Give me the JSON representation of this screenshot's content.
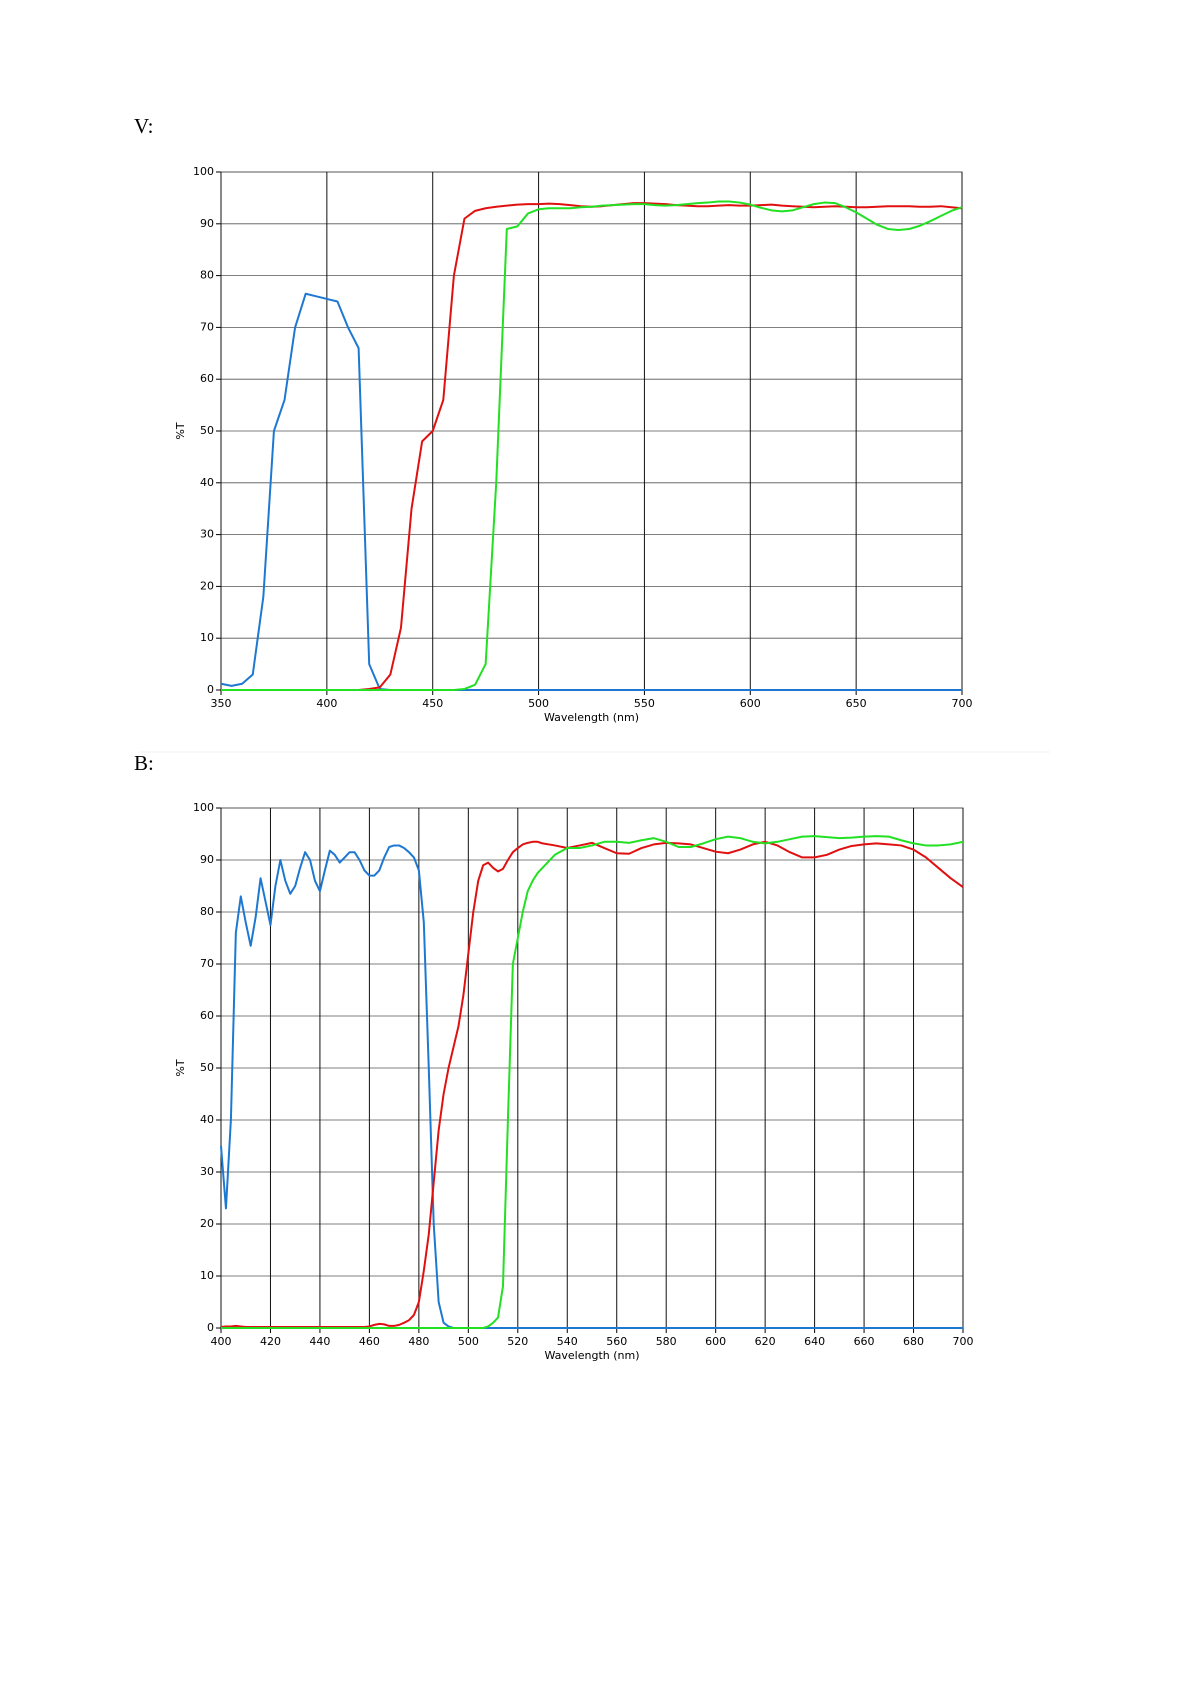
{
  "chart_data": [
    {
      "type": "line",
      "title": "V:",
      "xlabel": "Wavelength (nm)",
      "ylabel": "%T",
      "xlim": [
        350,
        700
      ],
      "xticks": [
        350,
        400,
        450,
        500,
        550,
        600,
        650,
        700
      ],
      "ylim": [
        0,
        100
      ],
      "yticks": [
        0,
        10,
        20,
        30,
        40,
        50,
        60,
        70,
        80,
        90,
        100
      ],
      "grid": true,
      "x": [
        350,
        355,
        360,
        365,
        370,
        375,
        380,
        385,
        390,
        395,
        400,
        405,
        410,
        415,
        420,
        425,
        430,
        435,
        440,
        445,
        450,
        455,
        460,
        465,
        470,
        475,
        480,
        485,
        490,
        495,
        500,
        505,
        510,
        515,
        520,
        525,
        530,
        535,
        540,
        545,
        550,
        555,
        560,
        565,
        570,
        575,
        580,
        585,
        590,
        595,
        600,
        605,
        610,
        615,
        620,
        625,
        630,
        635,
        640,
        645,
        650,
        655,
        660,
        665,
        670,
        675,
        680,
        685,
        690,
        695,
        700
      ],
      "series": [
        {
          "color": "#1e78d2",
          "values": [
            1.2,
            0.8,
            1.2,
            3,
            18,
            50,
            56,
            70,
            76.5,
            76,
            75.5,
            75,
            70,
            66,
            5,
            0.2,
            0,
            0,
            0,
            0,
            0,
            0,
            0,
            0,
            0,
            0,
            0,
            0,
            0,
            0,
            0,
            0,
            0,
            0,
            0,
            0,
            0,
            0,
            0,
            0,
            0,
            0,
            0,
            0,
            0,
            0,
            0,
            0,
            0,
            0,
            0,
            0,
            0,
            0,
            0,
            0,
            0,
            0,
            0,
            0,
            0,
            0,
            0,
            0,
            0,
            0,
            0,
            0,
            0,
            0,
            0
          ]
        },
        {
          "color": "#e01010",
          "values": [
            0,
            0,
            0,
            0,
            0,
            0,
            0,
            0,
            0,
            0,
            0,
            0,
            0,
            0,
            0.2,
            0.5,
            3,
            12,
            35,
            48,
            50,
            56,
            80,
            91,
            92.5,
            93,
            93.3,
            93.5,
            93.7,
            93.8,
            93.8,
            93.9,
            93.8,
            93.6,
            93.4,
            93.3,
            93.4,
            93.6,
            93.8,
            94,
            94,
            93.9,
            93.8,
            93.6,
            93.5,
            93.4,
            93.4,
            93.5,
            93.6,
            93.5,
            93.5,
            93.6,
            93.7,
            93.5,
            93.4,
            93.3,
            93.2,
            93.3,
            93.4,
            93.3,
            93.2,
            93.2,
            93.3,
            93.4,
            93.4,
            93.4,
            93.3,
            93.3,
            93.4,
            93.2,
            93
          ]
        },
        {
          "color": "#22e022",
          "values": [
            0,
            0,
            0,
            0,
            0,
            0,
            0,
            0,
            0,
            0,
            0,
            0,
            0,
            0,
            0,
            0,
            0,
            0,
            0,
            0,
            0,
            0,
            0,
            0.2,
            1,
            5,
            40,
            89,
            89.5,
            92,
            92.8,
            93,
            93,
            93,
            93.2,
            93.3,
            93.5,
            93.6,
            93.7,
            93.8,
            93.8,
            93.6,
            93.5,
            93.6,
            93.8,
            94,
            94.1,
            94.3,
            94.3,
            94.1,
            93.7,
            93.1,
            92.6,
            92.4,
            92.6,
            93.2,
            93.8,
            94.1,
            94,
            93.2,
            92.2,
            91,
            89.8,
            89,
            88.8,
            89,
            89.6,
            90.5,
            91.5,
            92.5,
            93.2
          ]
        }
      ]
    },
    {
      "type": "line",
      "title": "B:",
      "xlabel": "Wavelength (nm)",
      "ylabel": "%T",
      "xlim": [
        400,
        700
      ],
      "xticks": [
        400,
        420,
        440,
        460,
        480,
        500,
        520,
        540,
        560,
        580,
        600,
        620,
        640,
        660,
        680,
        700
      ],
      "ylim": [
        0,
        100
      ],
      "yticks": [
        0,
        10,
        20,
        30,
        40,
        50,
        60,
        70,
        80,
        90,
        100
      ],
      "grid": true,
      "x": [
        400,
        402,
        404,
        406,
        408,
        410,
        412,
        414,
        416,
        418,
        420,
        422,
        424,
        426,
        428,
        430,
        432,
        434,
        436,
        438,
        440,
        442,
        444,
        446,
        448,
        450,
        452,
        454,
        456,
        458,
        460,
        462,
        464,
        466,
        468,
        470,
        472,
        474,
        476,
        478,
        480,
        482,
        484,
        486,
        488,
        490,
        492,
        494,
        496,
        498,
        500,
        502,
        504,
        506,
        508,
        510,
        512,
        514,
        516,
        518,
        520,
        522,
        524,
        526,
        528,
        530,
        535,
        540,
        545,
        550,
        555,
        560,
        565,
        570,
        575,
        580,
        585,
        590,
        595,
        600,
        605,
        610,
        615,
        620,
        625,
        630,
        635,
        640,
        645,
        650,
        655,
        660,
        665,
        670,
        675,
        680,
        685,
        690,
        695,
        700
      ],
      "series": [
        {
          "color": "#1e78d2",
          "values": [
            35,
            23,
            40,
            76,
            83,
            78,
            73.5,
            79,
            86.5,
            82,
            77.5,
            85,
            90,
            86,
            83.5,
            85,
            88.5,
            91.5,
            90,
            86,
            84,
            88,
            91.8,
            91,
            89.5,
            90.5,
            91.5,
            91.5,
            90,
            88,
            87,
            87,
            88,
            90.5,
            92.5,
            92.8,
            92.8,
            92.3,
            91.5,
            90.5,
            88,
            78,
            50,
            20,
            5,
            1,
            0.3,
            0,
            0,
            0,
            0,
            0,
            0,
            0,
            0,
            0,
            0,
            0,
            0,
            0,
            0,
            0,
            0,
            0,
            0,
            0,
            0,
            0,
            0,
            0,
            0,
            0,
            0,
            0,
            0,
            0,
            0,
            0,
            0,
            0,
            0,
            0,
            0,
            0,
            0,
            0,
            0,
            0,
            0,
            0,
            0,
            0,
            0,
            0,
            0,
            0,
            0,
            0,
            0,
            0
          ]
        },
        {
          "color": "#e01010",
          "values": [
            0.2,
            0.3,
            0.3,
            0.4,
            0.3,
            0.2,
            0.2,
            0.2,
            0.2,
            0.2,
            0.2,
            0.2,
            0.2,
            0.2,
            0.2,
            0.2,
            0.2,
            0.2,
            0.2,
            0.2,
            0.2,
            0.2,
            0.2,
            0.2,
            0.2,
            0.2,
            0.2,
            0.2,
            0.2,
            0.2,
            0.3,
            0.6,
            0.8,
            0.7,
            0.4,
            0.4,
            0.6,
            1,
            1.5,
            2.5,
            5,
            11,
            18,
            28,
            38,
            45,
            50,
            54,
            58,
            64,
            72,
            80,
            86,
            89,
            89.5,
            88.5,
            87.8,
            88.3,
            90,
            91.5,
            92.3,
            93,
            93.3,
            93.5,
            93.5,
            93.2,
            92.8,
            92.3,
            92.8,
            93.3,
            92.3,
            91.3,
            91.2,
            92.3,
            93,
            93.3,
            93.2,
            93,
            92.3,
            91.6,
            91.3,
            92,
            93,
            93.5,
            92.8,
            91.5,
            90.5,
            90.5,
            91,
            92,
            92.7,
            93,
            93.2,
            93,
            92.8,
            92,
            90.5,
            88.5,
            86.5,
            84.8
          ]
        },
        {
          "color": "#22e022",
          "values": [
            0,
            0,
            0,
            0,
            0,
            0,
            0,
            0,
            0,
            0,
            0,
            0,
            0,
            0,
            0,
            0,
            0,
            0,
            0,
            0,
            0,
            0,
            0,
            0,
            0,
            0,
            0,
            0,
            0,
            0,
            0,
            0,
            0,
            0,
            0,
            0,
            0,
            0,
            0,
            0,
            0,
            0,
            0,
            0,
            0,
            0,
            0,
            0,
            0,
            0,
            0,
            0,
            0,
            0,
            0.3,
            1,
            2,
            8,
            40,
            70,
            75,
            80,
            84,
            86,
            87.5,
            88.5,
            91,
            92.3,
            92.3,
            92.8,
            93.5,
            93.5,
            93.3,
            93.8,
            94.2,
            93.5,
            92.5,
            92.5,
            93.2,
            94,
            94.5,
            94.2,
            93.5,
            93.2,
            93.5,
            94,
            94.5,
            94.6,
            94.4,
            94.2,
            94.3,
            94.5,
            94.6,
            94.5,
            93.8,
            93.2,
            92.8,
            92.8,
            93,
            93.5
          ]
        }
      ]
    }
  ]
}
